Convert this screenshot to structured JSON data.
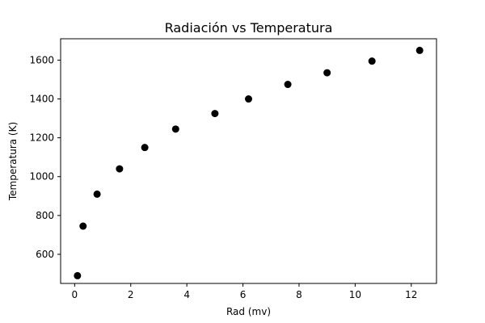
{
  "chart_data": {
    "type": "scatter",
    "title": "Radiación vs Temperatura",
    "xlabel": "Rad (mv)",
    "ylabel": "Temperatura (K)",
    "xlim": [
      -0.5,
      12.9
    ],
    "ylim": [
      450,
      1710
    ],
    "xticks": [
      0,
      2,
      4,
      6,
      8,
      10,
      12
    ],
    "yticks": [
      600,
      800,
      1000,
      1200,
      1400,
      1600
    ],
    "grid": false,
    "marker_color": "#000000",
    "series": [
      {
        "x": [
          0.1,
          0.3,
          0.8,
          1.6,
          2.5,
          3.6,
          5.0,
          6.2,
          7.6,
          9.0,
          10.6,
          12.3
        ],
        "y": [
          490,
          745,
          910,
          1040,
          1150,
          1245,
          1325,
          1400,
          1475,
          1535,
          1595,
          1650
        ]
      }
    ]
  }
}
